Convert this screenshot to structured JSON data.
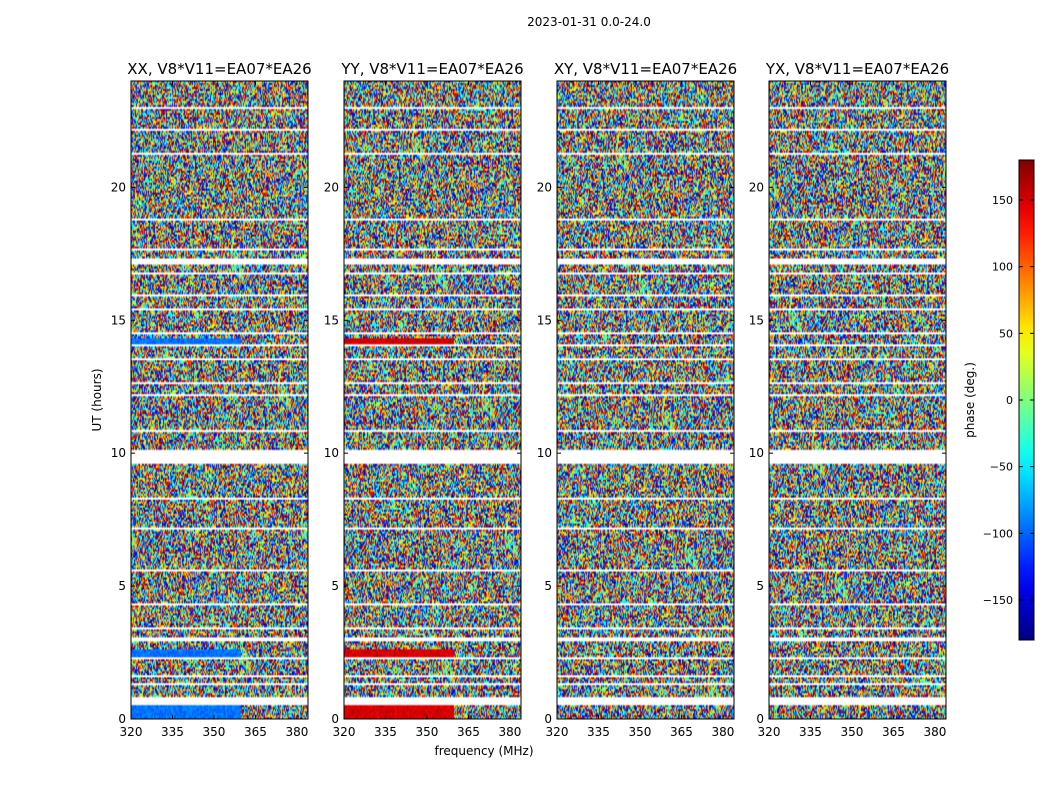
{
  "suptitle": "2023-01-31 0.0-24.0",
  "chart_data": {
    "type": "heatmap",
    "title": "2023-01-31 0.0-24.0",
    "xlabel": "frequency (MHz)",
    "ylabel": "UT (hours)",
    "xlim": [
      320,
      384
    ],
    "ylim": [
      0,
      24
    ],
    "xticks": [
      320,
      335,
      350,
      365,
      380
    ],
    "yticks": [
      0,
      5,
      10,
      15,
      20
    ],
    "panels": [
      {
        "title": "XX, V8*V11=EA07*EA26",
        "tint": -95
      },
      {
        "title": "YY, V8*V11=EA07*EA26",
        "tint": 150
      },
      {
        "title": "XY, V8*V11=EA07*EA26",
        "tint": 0
      },
      {
        "title": "YX, V8*V11=EA07*EA26",
        "tint": 0
      }
    ],
    "flagged_rows_ut": [
      [
        0.55,
        0.8
      ],
      [
        1.3,
        1.38
      ],
      [
        1.55,
        1.62
      ],
      [
        2.25,
        2.35
      ],
      [
        2.95,
        3.05
      ],
      [
        3.35,
        3.45
      ],
      [
        4.3,
        4.38
      ],
      [
        4.7,
        4.75
      ],
      [
        5.55,
        5.62
      ],
      [
        7.15,
        7.2
      ],
      [
        8.25,
        8.3
      ],
      [
        9.6,
        10.1
      ],
      [
        10.8,
        10.85
      ],
      [
        12.15,
        12.2
      ],
      [
        12.6,
        12.65
      ],
      [
        13.5,
        13.55
      ],
      [
        14.0,
        14.1
      ],
      [
        14.45,
        14.55
      ],
      [
        15.35,
        15.45
      ],
      [
        15.9,
        16.0
      ],
      [
        16.7,
        16.8
      ],
      [
        17.1,
        17.3
      ],
      [
        17.6,
        17.7
      ],
      [
        18.75,
        18.85
      ],
      [
        19.55,
        19.6
      ],
      [
        21.2,
        21.3
      ],
      [
        22.15,
        22.2
      ],
      [
        22.95,
        23.05
      ],
      [
        23.45,
        23.5
      ]
    ],
    "colorbar": {
      "label": "phase (deg.)",
      "range": [
        -180,
        180
      ],
      "ticks": [
        -150,
        -100,
        -50,
        0,
        50,
        100,
        150
      ],
      "colormap": "jet"
    }
  }
}
